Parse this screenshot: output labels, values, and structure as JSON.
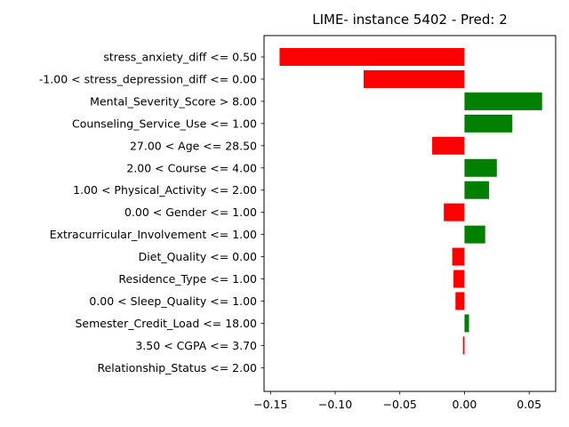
{
  "chart_data": {
    "type": "bar",
    "orientation": "horizontal",
    "title": "LIME- instance 5402 - Pred: 2",
    "xlabel": "",
    "ylabel": "",
    "xlim": [
      -0.155,
      0.0705
    ],
    "xticks": [
      -0.15,
      -0.1,
      -0.05,
      0.0,
      0.05
    ],
    "xtick_labels": [
      "−0.15",
      "−0.10",
      "−0.05",
      "0.00",
      "0.05"
    ],
    "colors": {
      "positive": "#008000",
      "negative": "#ff0000"
    },
    "categories": [
      "stress_anxiety_diff <= 0.50",
      "-1.00 < stress_depression_diff <= 0.00",
      "Mental_Severity_Score > 8.00",
      "Counseling_Service_Use <= 1.00",
      "27.00 < Age <= 28.50",
      "2.00 < Course <= 4.00",
      "1.00 < Physical_Activity <= 2.00",
      "0.00 < Gender <= 1.00",
      "Extracurricular_Involvement <= 1.00",
      "Diet_Quality <= 0.00",
      "Residence_Type <= 1.00",
      "0.00 < Sleep_Quality <= 1.00",
      "Semester_Credit_Load <= 18.00",
      "3.50 < CGPA <= 3.70",
      "Relationship_Status <= 2.00"
    ],
    "values": [
      -0.143,
      -0.078,
      0.06,
      0.037,
      -0.025,
      0.025,
      0.019,
      -0.016,
      0.016,
      -0.0095,
      -0.0085,
      -0.007,
      0.0035,
      -0.0012,
      0.0
    ]
  }
}
